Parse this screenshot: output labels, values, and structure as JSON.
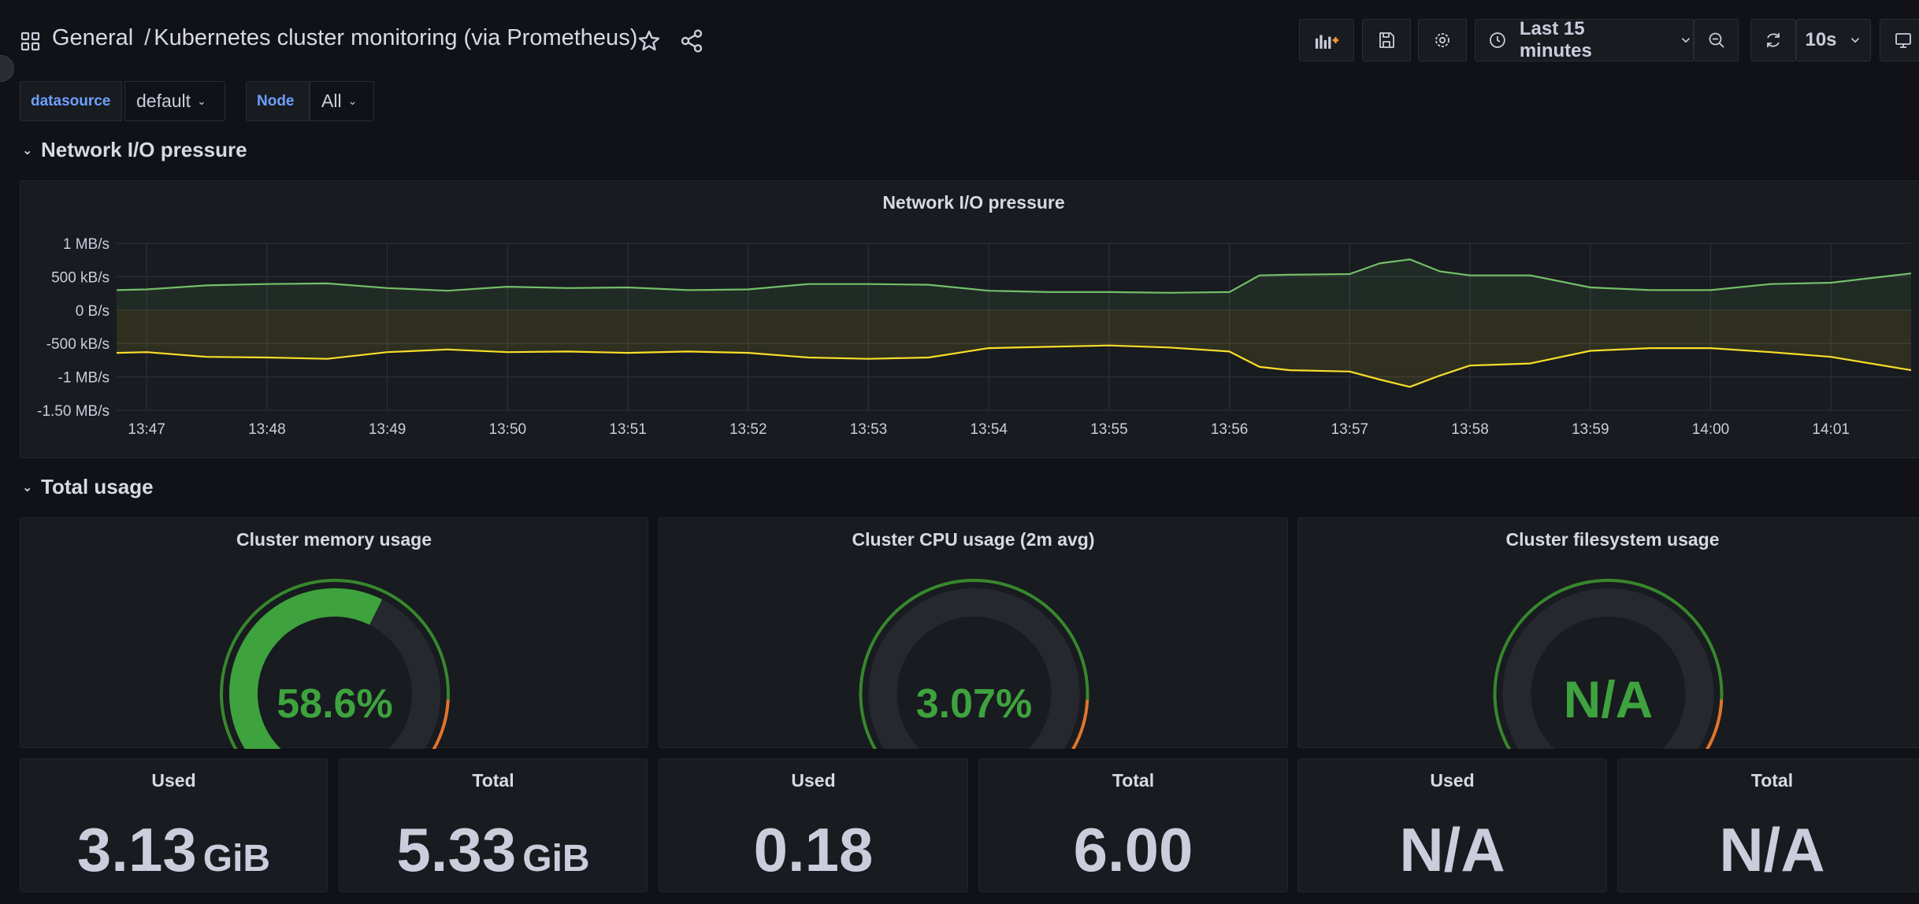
{
  "header": {
    "folder": "General",
    "separator": "/",
    "title": "Kubernetes cluster monitoring (via Prometheus)",
    "time_range": "Last 15 minutes",
    "refresh_interval": "10s",
    "icons": [
      "apps-icon",
      "star-icon",
      "share-icon",
      "add-panel-icon",
      "save-icon",
      "settings-icon",
      "clock-icon",
      "zoom-out-icon",
      "refresh-icon",
      "tv-icon"
    ]
  },
  "variables": [
    {
      "label": "datasource",
      "value": "default"
    },
    {
      "label": "Node",
      "value": "All"
    }
  ],
  "rows": {
    "network": "Network I/O pressure",
    "usage": "Total usage"
  },
  "network_panel": {
    "title": "Network I/O pressure",
    "y_ticks": [
      "1 MB/s",
      "500 kB/s",
      "0 B/s",
      "-500 kB/s",
      "-1 MB/s",
      "-1.50 MB/s"
    ],
    "x_ticks": [
      "13:47",
      "13:48",
      "13:49",
      "13:50",
      "13:51",
      "13:52",
      "13:53",
      "13:54",
      "13:55",
      "13:56",
      "13:57",
      "13:58",
      "13:59",
      "14:00",
      "14:01"
    ]
  },
  "chart_data": {
    "type": "area",
    "title": "Network I/O pressure",
    "ylim": [
      -1.5,
      1
    ],
    "y_unit": "MB/s",
    "x_range": [
      "13:46:45",
      "14:01:40"
    ],
    "grid": true,
    "legend": "none",
    "x": [
      "13:46:45",
      "13:47:00",
      "13:47:30",
      "13:48:00",
      "13:48:30",
      "13:49:00",
      "13:49:30",
      "13:50:00",
      "13:50:30",
      "13:51:00",
      "13:51:30",
      "13:52:00",
      "13:52:30",
      "13:53:00",
      "13:53:30",
      "13:54:00",
      "13:54:30",
      "13:55:00",
      "13:55:30",
      "13:56:00",
      "13:56:15",
      "13:56:30",
      "13:57:00",
      "13:57:15",
      "13:57:30",
      "13:57:45",
      "13:58:00",
      "13:58:30",
      "13:59:00",
      "13:59:30",
      "14:00:00",
      "14:00:30",
      "14:01:00",
      "14:01:40"
    ],
    "series": [
      {
        "color": "#73bf69",
        "values": [
          0.3,
          0.31,
          0.37,
          0.39,
          0.4,
          0.33,
          0.29,
          0.35,
          0.33,
          0.34,
          0.3,
          0.31,
          0.39,
          0.39,
          0.38,
          0.29,
          0.27,
          0.27,
          0.26,
          0.27,
          0.52,
          0.53,
          0.54,
          0.7,
          0.76,
          0.58,
          0.52,
          0.52,
          0.34,
          0.3,
          0.3,
          0.39,
          0.41,
          0.55
        ]
      },
      {
        "color": "#fade2a",
        "values": [
          -0.64,
          -0.63,
          -0.7,
          -0.71,
          -0.73,
          -0.63,
          -0.59,
          -0.63,
          -0.62,
          -0.64,
          -0.62,
          -0.64,
          -0.71,
          -0.73,
          -0.71,
          -0.57,
          -0.55,
          -0.53,
          -0.56,
          -0.62,
          -0.85,
          -0.9,
          -0.92,
          -1.04,
          -1.15,
          -0.98,
          -0.83,
          -0.8,
          -0.61,
          -0.57,
          -0.57,
          -0.63,
          -0.7,
          -0.9
        ]
      }
    ]
  },
  "gauges": [
    {
      "title": "Cluster memory usage",
      "value": "58.6%",
      "fraction": 0.586
    },
    {
      "title": "Cluster CPU usage (2m avg)",
      "value": "3.07%",
      "fraction": 0.0307
    },
    {
      "title": "Cluster filesystem usage",
      "value": "N/A",
      "fraction": 0
    }
  ],
  "gauge_thresholds": {
    "green": "#37872d",
    "orange": "#e0752d",
    "red": "#c4162a",
    "value_color": "#3ea33e"
  },
  "stats": [
    {
      "title": "Used",
      "value": "3.13",
      "unit": "GiB"
    },
    {
      "title": "Total",
      "value": "5.33",
      "unit": "GiB"
    },
    {
      "title": "Used",
      "value": "0.18",
      "unit": ""
    },
    {
      "title": "Total",
      "value": "6.00",
      "unit": ""
    },
    {
      "title": "Used",
      "value": "N/A",
      "unit": ""
    },
    {
      "title": "Total",
      "value": "N/A",
      "unit": ""
    }
  ]
}
